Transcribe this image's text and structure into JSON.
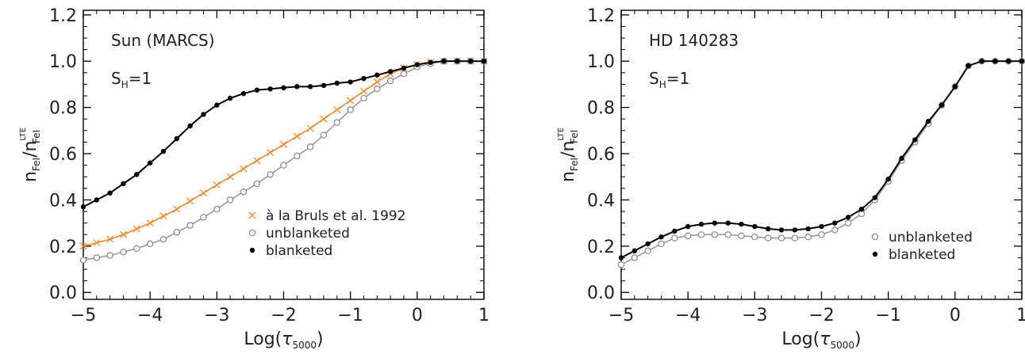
{
  "chart_data": [
    {
      "type": "line",
      "panel": "left",
      "annotation": "Sun (MARCS)",
      "sh_label": {
        "base": "S",
        "sub": "H",
        "rest": "=1"
      },
      "xlabel": {
        "prefix": "Log(",
        "symbol": "τ",
        "sub": "5000",
        "suffix": ")"
      },
      "ylabel": {
        "n": "n",
        "sub1": "FeI",
        "slash": "/n",
        "sub2": "FeI",
        "sup2": "LTE"
      },
      "xlim": [
        -5,
        1
      ],
      "ylim": [
        -0.03,
        1.22
      ],
      "xticks": [
        -5,
        -4,
        -3,
        -2,
        -1,
        0,
        1
      ],
      "xtick_labels": [
        "−5",
        "−4",
        "−3",
        "−2",
        "−1",
        "0",
        "1"
      ],
      "yticks": [
        0.0,
        0.2,
        0.4,
        0.6,
        0.8,
        1.0,
        1.2
      ],
      "ytick_labels": [
        "0.0",
        "0.2",
        "0.4",
        "0.6",
        "0.8",
        "1.0",
        "1.2"
      ],
      "legend_position": "bottom-right",
      "series": [
        {
          "name": "à la Bruls et al. 1992",
          "marker": "x",
          "color": "#f28a2c",
          "x": [
            -5.0,
            -4.8,
            -4.6,
            -4.4,
            -4.2,
            -4.0,
            -3.8,
            -3.6,
            -3.4,
            -3.2,
            -3.0,
            -2.8,
            -2.6,
            -2.4,
            -2.2,
            -2.0,
            -1.8,
            -1.6,
            -1.4,
            -1.2,
            -1.0,
            -0.8,
            -0.6,
            -0.4,
            -0.2,
            0.0,
            0.2,
            0.4,
            0.6,
            0.8,
            1.0
          ],
          "y": [
            0.2,
            0.215,
            0.23,
            0.25,
            0.275,
            0.3,
            0.33,
            0.36,
            0.395,
            0.43,
            0.465,
            0.5,
            0.535,
            0.57,
            0.605,
            0.64,
            0.675,
            0.71,
            0.75,
            0.79,
            0.83,
            0.87,
            0.91,
            0.945,
            0.97,
            0.985,
            0.995,
            1.0,
            1.0,
            1.0,
            1.0
          ]
        },
        {
          "name": "unblanketed",
          "marker": "open-circle",
          "color": "#909090",
          "x": [
            -5.0,
            -4.8,
            -4.6,
            -4.4,
            -4.2,
            -4.0,
            -3.8,
            -3.6,
            -3.4,
            -3.2,
            -3.0,
            -2.8,
            -2.6,
            -2.4,
            -2.2,
            -2.0,
            -1.8,
            -1.6,
            -1.4,
            -1.2,
            -1.0,
            -0.8,
            -0.6,
            -0.4,
            -0.2,
            0.0,
            0.2,
            0.4,
            0.6,
            0.8,
            1.0
          ],
          "y": [
            0.14,
            0.15,
            0.16,
            0.175,
            0.19,
            0.21,
            0.23,
            0.26,
            0.29,
            0.325,
            0.36,
            0.4,
            0.435,
            0.47,
            0.51,
            0.55,
            0.59,
            0.63,
            0.68,
            0.735,
            0.79,
            0.84,
            0.88,
            0.915,
            0.945,
            0.975,
            0.99,
            1.0,
            1.0,
            1.0,
            1.0
          ]
        },
        {
          "name": "blanketed",
          "marker": "filled-circle",
          "color": "#000000",
          "x": [
            -5.0,
            -4.8,
            -4.6,
            -4.4,
            -4.2,
            -4.0,
            -3.8,
            -3.6,
            -3.4,
            -3.2,
            -3.0,
            -2.8,
            -2.6,
            -2.4,
            -2.2,
            -2.0,
            -1.8,
            -1.6,
            -1.4,
            -1.2,
            -1.0,
            -0.8,
            -0.6,
            -0.4,
            -0.2,
            0.0,
            0.2,
            0.4,
            0.6,
            0.8,
            1.0
          ],
          "y": [
            0.37,
            0.4,
            0.43,
            0.47,
            0.51,
            0.56,
            0.61,
            0.665,
            0.72,
            0.77,
            0.81,
            0.84,
            0.86,
            0.875,
            0.88,
            0.885,
            0.89,
            0.89,
            0.895,
            0.905,
            0.91,
            0.925,
            0.94,
            0.955,
            0.97,
            0.985,
            0.995,
            1.0,
            1.0,
            1.0,
            1.0
          ]
        }
      ]
    },
    {
      "type": "line",
      "panel": "right",
      "annotation": "HD 140283",
      "sh_label": {
        "base": "S",
        "sub": "H",
        "rest": "=1"
      },
      "xlabel": {
        "prefix": "Log(",
        "symbol": "τ",
        "sub": "5000",
        "suffix": ")"
      },
      "ylabel": {
        "n": "n",
        "sub1": "FeI",
        "slash": "/n",
        "sub2": "FeI",
        "sup2": "LTE"
      },
      "xlim": [
        -5,
        1
      ],
      "ylim": [
        -0.03,
        1.22
      ],
      "xticks": [
        -5,
        -4,
        -3,
        -2,
        -1,
        0,
        1
      ],
      "xtick_labels": [
        "−5",
        "−4",
        "−3",
        "−2",
        "−1",
        "0",
        "1"
      ],
      "yticks": [
        0.0,
        0.2,
        0.4,
        0.6,
        0.8,
        1.0,
        1.2
      ],
      "ytick_labels": [
        "0.0",
        "0.2",
        "0.4",
        "0.6",
        "0.8",
        "1.0",
        "1.2"
      ],
      "legend_position": "bottom-right",
      "series": [
        {
          "name": "unblanketed",
          "marker": "open-circle",
          "color": "#909090",
          "x": [
            -5.0,
            -4.8,
            -4.6,
            -4.4,
            -4.2,
            -4.0,
            -3.8,
            -3.6,
            -3.4,
            -3.2,
            -3.0,
            -2.8,
            -2.6,
            -2.4,
            -2.2,
            -2.0,
            -1.8,
            -1.6,
            -1.4,
            -1.2,
            -1.0,
            -0.8,
            -0.6,
            -0.4,
            -0.2,
            0.0,
            0.2,
            0.4,
            0.6,
            0.8,
            1.0
          ],
          "y": [
            0.12,
            0.15,
            0.18,
            0.21,
            0.235,
            0.245,
            0.25,
            0.25,
            0.25,
            0.245,
            0.24,
            0.235,
            0.235,
            0.235,
            0.24,
            0.25,
            0.27,
            0.3,
            0.34,
            0.4,
            0.48,
            0.57,
            0.65,
            0.73,
            0.81,
            0.89,
            0.98,
            1.0,
            1.0,
            1.0,
            1.0
          ]
        },
        {
          "name": "blanketed",
          "marker": "filled-circle",
          "color": "#000000",
          "x": [
            -5.0,
            -4.8,
            -4.6,
            -4.4,
            -4.2,
            -4.0,
            -3.8,
            -3.6,
            -3.4,
            -3.2,
            -3.0,
            -2.8,
            -2.6,
            -2.4,
            -2.2,
            -2.0,
            -1.8,
            -1.6,
            -1.4,
            -1.2,
            -1.0,
            -0.8,
            -0.6,
            -0.4,
            -0.2,
            0.0,
            0.2,
            0.4,
            0.6,
            0.8,
            1.0
          ],
          "y": [
            0.15,
            0.18,
            0.21,
            0.24,
            0.265,
            0.285,
            0.295,
            0.3,
            0.3,
            0.295,
            0.285,
            0.275,
            0.27,
            0.27,
            0.275,
            0.285,
            0.3,
            0.325,
            0.36,
            0.41,
            0.49,
            0.58,
            0.66,
            0.74,
            0.81,
            0.89,
            0.98,
            1.0,
            1.0,
            1.0,
            1.0
          ]
        }
      ]
    }
  ]
}
